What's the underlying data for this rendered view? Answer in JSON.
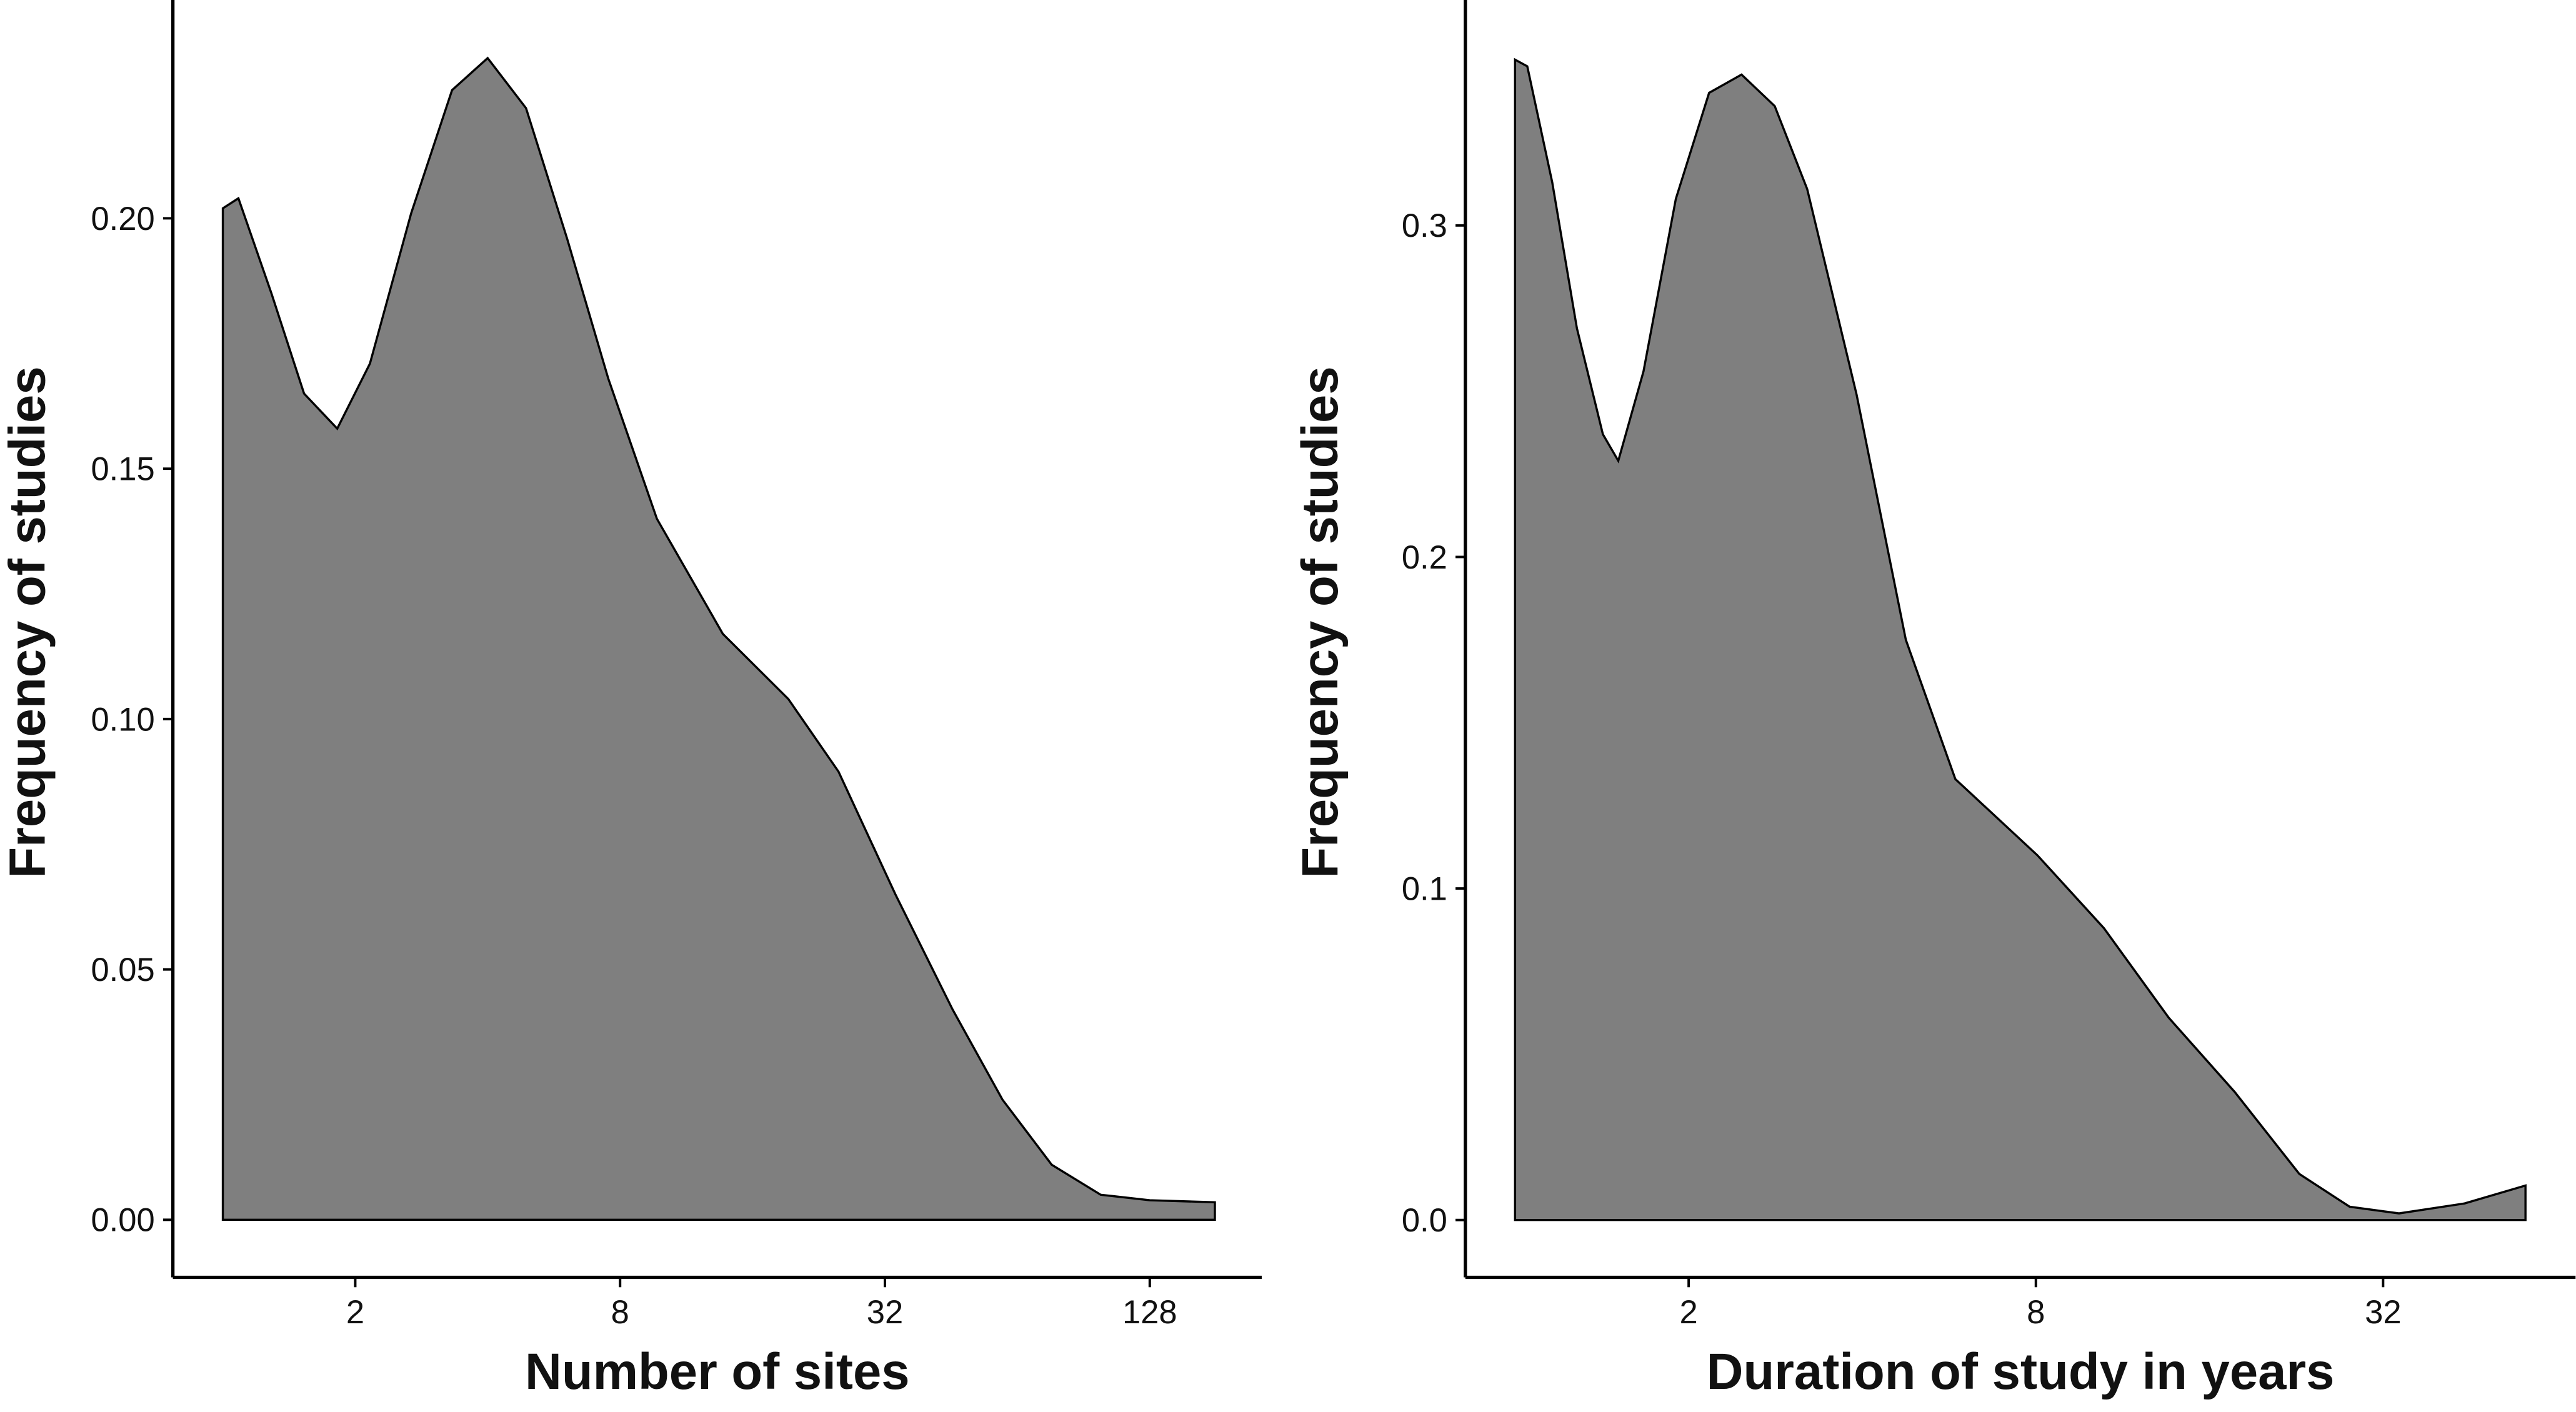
{
  "chart_data": [
    {
      "type": "area",
      "x_label": "Number of sites",
      "y_label": "Frequency of studies",
      "x": [
        1,
        1.085,
        1.29,
        1.53,
        1.82,
        2.16,
        2.68,
        3.32,
        4.0,
        4.89,
        6.06,
        7.52,
        9.7,
        13.7,
        19.3,
        25.1,
        33.8,
        45.6,
        59.2,
        76.6,
        99,
        128,
        180
      ],
      "values": [
        0.202,
        0.204,
        0.185,
        0.165,
        0.158,
        0.171,
        0.201,
        0.2256,
        0.232,
        0.222,
        0.196,
        0.168,
        0.14,
        0.117,
        0.104,
        0.0895,
        0.065,
        0.042,
        0.024,
        0.011,
        0.005,
        0.0039,
        0.0035
      ],
      "color": "#7f7f7f",
      "log_x": true,
      "xlim": [
        0.77,
        230
      ],
      "ylim": [
        -0.0115,
        0.2436
      ],
      "xticks": [
        2,
        8,
        32,
        128
      ],
      "yticks": [
        {
          "value": 0,
          "label": "0.00"
        },
        0.05,
        {
          "value": 0.1,
          "label": "0.10"
        },
        0.15,
        {
          "value": 0.2,
          "label": "0.20"
        }
      ]
    },
    {
      "type": "area",
      "x_label": "Duration of study in years",
      "y_label": "Frequency of studies",
      "x": [
        1,
        1.05,
        1.16,
        1.28,
        1.42,
        1.51,
        1.67,
        1.9,
        2.17,
        2.47,
        2.82,
        3.21,
        3.91,
        4.76,
        5.8,
        8.05,
        10.5,
        13.6,
        17.7,
        22.9,
        28,
        34.1,
        44.3,
        56.5
      ],
      "values": [
        0.35,
        0.348,
        0.313,
        0.269,
        0.237,
        0.229,
        0.256,
        0.308,
        0.34,
        0.3455,
        0.336,
        0.311,
        0.249,
        0.175,
        0.133,
        0.11,
        0.088,
        0.061,
        0.0386,
        0.0139,
        0.004,
        0.002,
        0.005,
        0.0104
      ],
      "color": "#7f7f7f",
      "log_x": true,
      "xlim": [
        0.82,
        69
      ],
      "ylim": [
        -0.0173,
        0.368
      ],
      "xticks": [
        2,
        8,
        32
      ],
      "yticks": [
        {
          "value": 0,
          "label": "0.0"
        },
        0.1,
        0.2,
        0.3
      ]
    }
  ]
}
